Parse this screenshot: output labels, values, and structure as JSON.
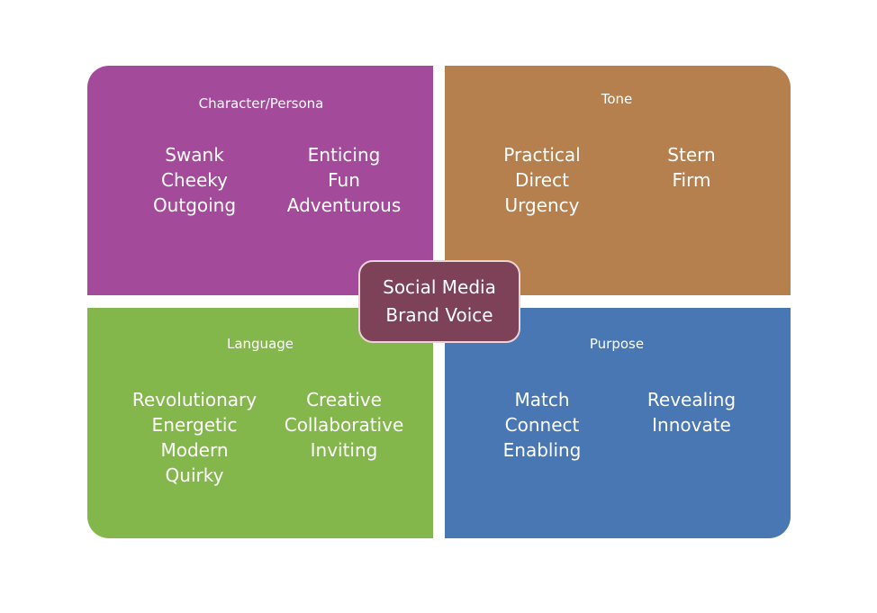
{
  "colors": {
    "character": "#a44a9a",
    "tone": "#b5804d",
    "language": "#84b74b",
    "purpose": "#4877b3",
    "center": "#7d4258"
  },
  "center": {
    "line1": "Social Media",
    "line2": "Brand Voice"
  },
  "character": {
    "title": "Character/Persona",
    "col1": [
      "Swank",
      "Cheeky",
      "Outgoing"
    ],
    "col2": [
      "Enticing",
      "Fun",
      "Adventurous"
    ]
  },
  "tone": {
    "title": "Tone",
    "col1": [
      "Practical",
      "Direct",
      "Urgency"
    ],
    "col2": [
      "Stern",
      "Firm"
    ]
  },
  "language": {
    "title": "Language",
    "col1": [
      "Revolutionary",
      "Energetic",
      "Modern",
      "Quirky"
    ],
    "col2": [
      "Creative",
      "Collaborative",
      "Inviting"
    ]
  },
  "purpose": {
    "title": "Purpose",
    "col1": [
      "Match",
      "Connect",
      "Enabling"
    ],
    "col2": [
      "Revealing",
      "Innovate"
    ]
  }
}
